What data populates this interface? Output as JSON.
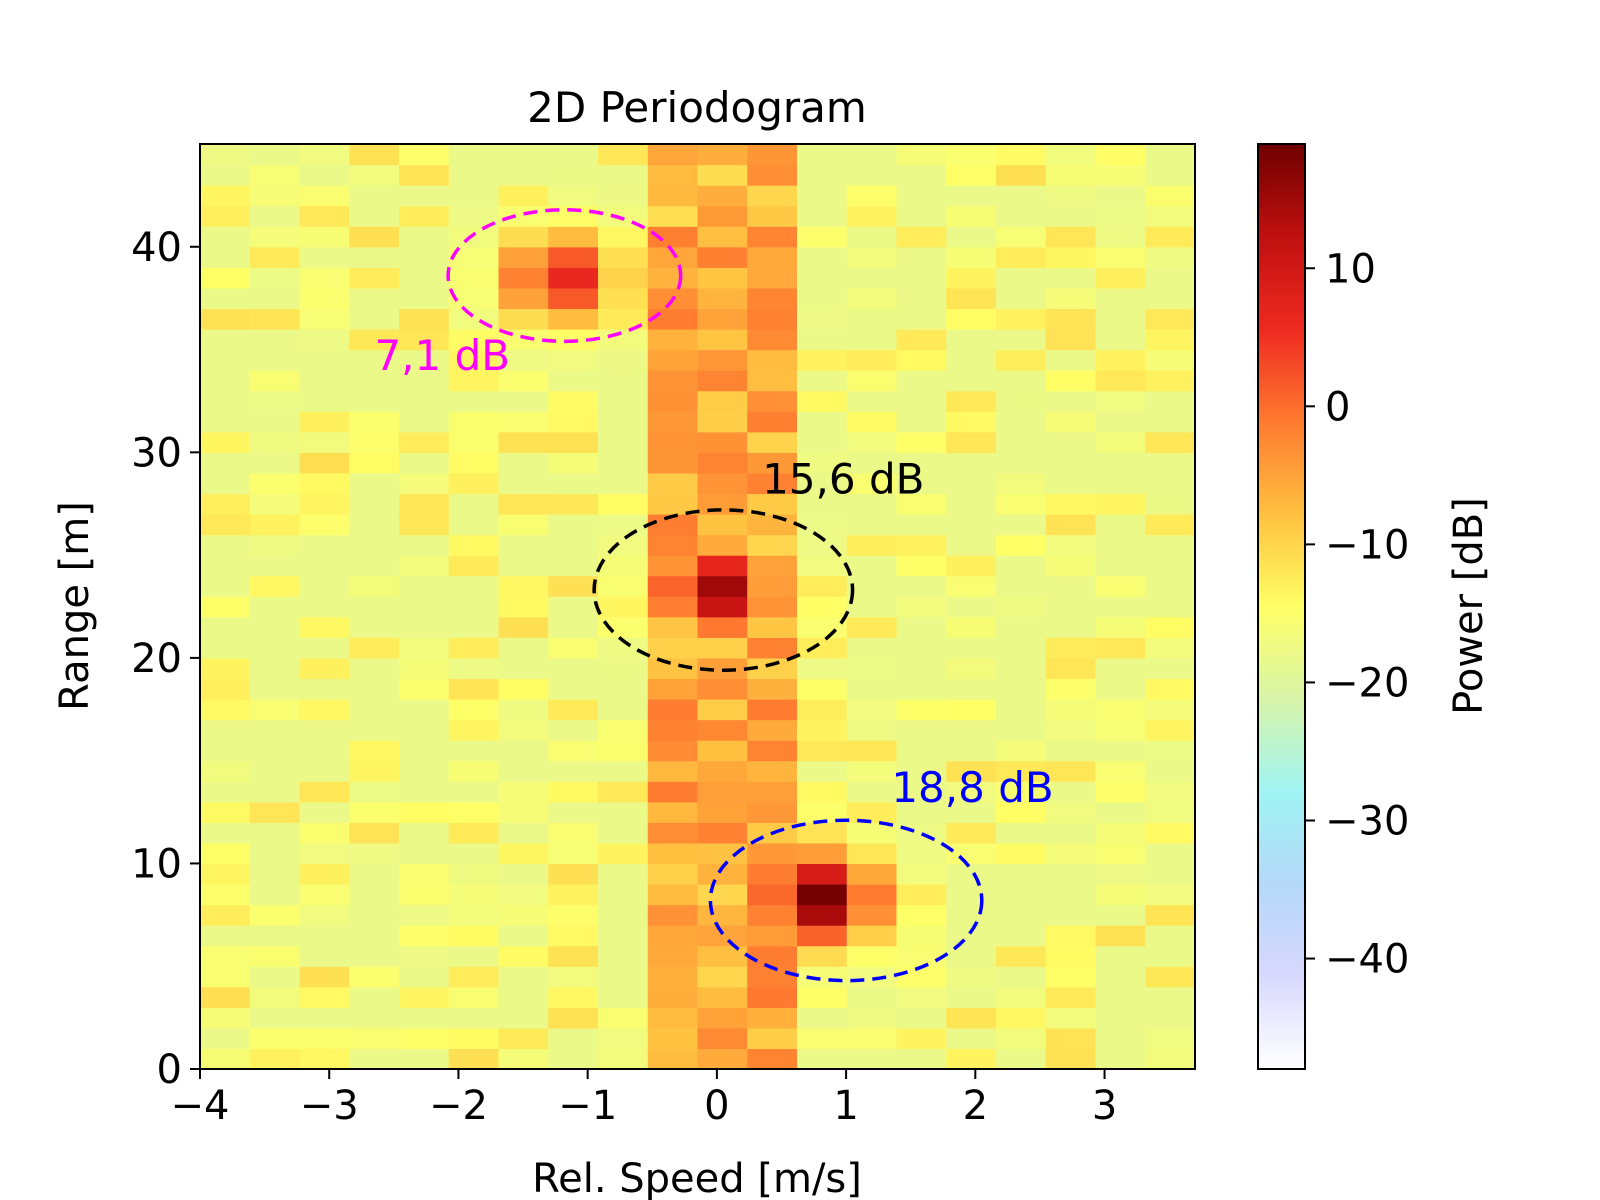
{
  "chart_data": {
    "type": "heatmap",
    "title": "2D Periodogram",
    "xlabel": "Rel. Speed [m/s]",
    "ylabel": "Range [m]",
    "xlim": [
      -4.0,
      3.7
    ],
    "ylim": [
      0,
      45
    ],
    "x_ticks": [
      -4,
      -3,
      -2,
      -1,
      0,
      1,
      2,
      3
    ],
    "x_tick_labels": [
      "−4",
      "−3",
      "−2",
      "−1",
      "0",
      "1",
      "2",
      "3"
    ],
    "y_ticks": [
      0,
      10,
      20,
      30,
      40
    ],
    "y_tick_labels": [
      "0",
      "10",
      "20",
      "30",
      "40"
    ],
    "cell_width_ms": 0.385,
    "cell_height_m": 1.0,
    "background_level_db": -18,
    "peaks": [
      {
        "speed": 0.8,
        "range": 8.3,
        "power_db": 18.8
      },
      {
        "speed": 0.0,
        "range": 23.3,
        "power_db": 15.6
      },
      {
        "speed": -1.2,
        "range": 38.5,
        "power_db": 7.1
      }
    ],
    "colorbar": {
      "label": "Power [dB]",
      "range": [
        -48,
        19
      ],
      "ticks": [
        10,
        0,
        -10,
        -20,
        -30,
        -40
      ],
      "tick_labels": [
        "10",
        "0",
        "−10",
        "−20",
        "−30",
        "−40"
      ],
      "colors": [
        "#ffffff",
        "#d8d8ff",
        "#b4d8f8",
        "#a0f4f4",
        "#d8f4a8",
        "#ffff66",
        "#ffc040",
        "#ff7a30",
        "#ee2a20",
        "#c01010",
        "#700000"
      ]
    },
    "annotations": [
      {
        "text": "7,1 dB",
        "color": "#ff00ff",
        "speed": -2.65,
        "range": 34.0
      },
      {
        "text": "15,6 dB",
        "color": "#000000",
        "speed": 0.35,
        "range": 28.0
      },
      {
        "text": "18,8 dB",
        "color": "#0000ff",
        "speed": 1.35,
        "range": 13.0
      }
    ],
    "ellipses": [
      {
        "name": "ellipse-7-1-db",
        "color": "#ff00ff",
        "cx": -1.18,
        "cy": 38.6,
        "rx": 0.9,
        "ry": 3.2
      },
      {
        "name": "ellipse-15-6-db",
        "color": "#000000",
        "cx": 0.05,
        "cy": 23.3,
        "rx": 1.0,
        "ry": 3.9
      },
      {
        "name": "ellipse-18-8-db",
        "color": "#0000ff",
        "cx": 1.0,
        "cy": 8.2,
        "rx": 1.05,
        "ry": 3.9
      }
    ]
  }
}
